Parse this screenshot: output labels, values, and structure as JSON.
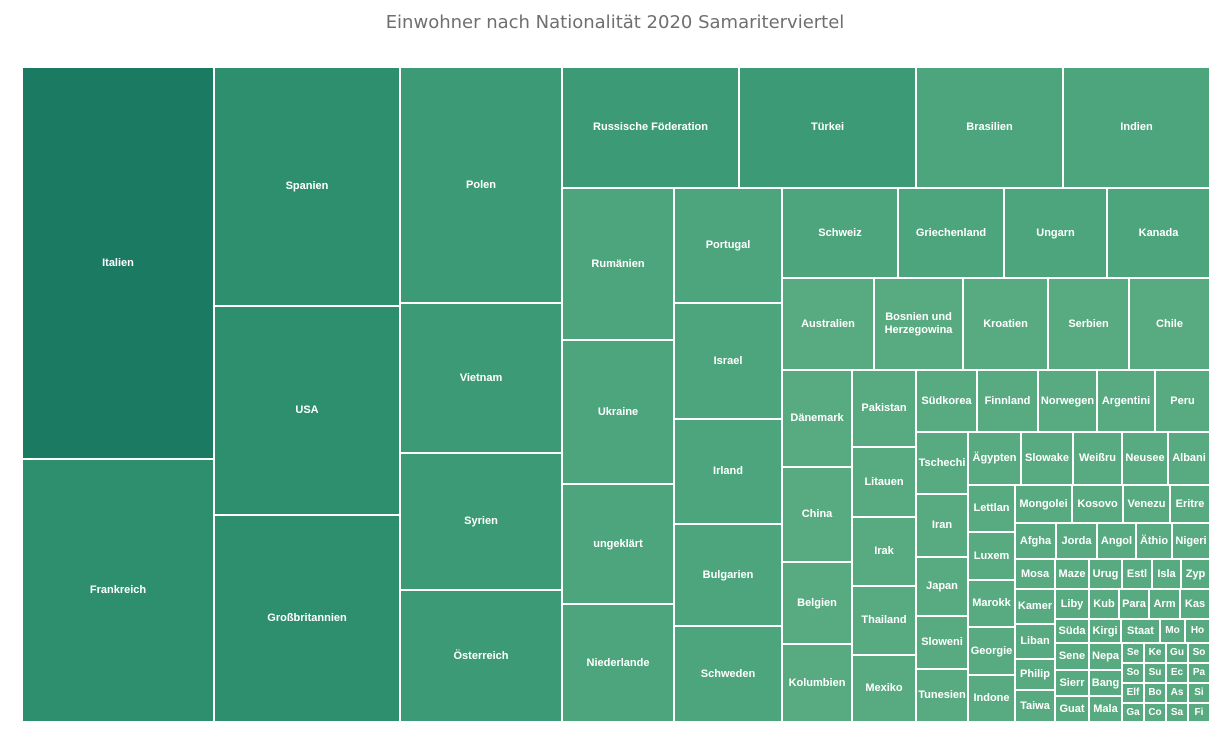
{
  "chart_data": {
    "type": "treemap",
    "title": "Einwohner nach Nationalität 2020 Samariterviertel",
    "categories": [
      "Italien",
      "Frankreich",
      "Spanien",
      "USA",
      "Großbritannien",
      "Polen",
      "Vietnam",
      "Syrien",
      "Österreich",
      "Russische Föderation",
      "Türkei",
      "Brasilien",
      "Indien",
      "Rumänien",
      "Ukraine",
      "ungeklärt",
      "Niederlande",
      "Portugal",
      "Israel",
      "Irland",
      "Bulgarien",
      "Schweden",
      "Schweiz",
      "Griechenland",
      "Ungarn",
      "Kanada",
      "Australien",
      "Bosnien und Herzegowina",
      "Kroatien",
      "Serbien",
      "Chile",
      "Dänemark",
      "China",
      "Belgien",
      "Kolumbien",
      "Pakistan",
      "Litauen",
      "Irak",
      "Thailand",
      "Mexiko",
      "Südkorea",
      "Finnland",
      "Norwegen",
      "Argentini",
      "Peru",
      "Tschechi",
      "Iran",
      "Japan",
      "Sloweni",
      "Tunesien",
      "Ägypten",
      "Slowake",
      "Weißru",
      "Neusee",
      "Albani",
      "Lettlan",
      "Luxem",
      "Marokk",
      "Georgie",
      "Indone",
      "Mongolei",
      "Kosovo",
      "Venezu",
      "Eritre",
      "Afgha",
      "Jorda",
      "Angol",
      "Äthio",
      "Nigeri",
      "Mosa",
      "Maze",
      "Urug",
      "Estl",
      "Isla",
      "Zyp",
      "Kamer",
      "Liby",
      "Kub",
      "Para",
      "Arm",
      "Kas",
      "Liban",
      "Süda",
      "Kirgi",
      "Staat",
      "Mo",
      "Ho",
      "Philip",
      "Sene",
      "Nepa",
      "Se",
      "Ke",
      "Gu",
      "So",
      "Sierr",
      "Bang",
      "So",
      "Su",
      "Ec",
      "Pa",
      "Taiwa",
      "Guat",
      "Mala",
      "Elf",
      "Bo",
      "As",
      "Si",
      "Ga",
      "Co",
      "Sa",
      "Fi"
    ],
    "values": [
      132,
      94,
      58,
      51,
      50,
      42,
      39,
      37,
      35,
      19,
      19,
      16,
      16,
      24,
      19,
      17,
      16,
      17,
      18,
      16,
      16,
      14,
      11,
      10,
      10,
      10,
      9,
      8,
      8,
      8,
      8,
      9,
      9,
      7,
      7,
      6,
      5,
      5,
      5,
      5,
      4,
      4,
      4,
      4,
      4,
      3,
      3,
      3,
      2,
      2,
      3,
      3,
      3,
      3,
      3,
      2,
      2,
      2,
      2,
      2,
      2,
      2,
      2,
      2,
      2,
      2,
      2,
      2,
      2,
      1,
      1,
      1,
      1,
      1,
      1,
      1,
      1,
      1,
      1,
      1,
      1,
      1,
      1,
      1,
      1,
      1,
      1,
      1,
      1,
      1,
      1,
      1,
      1,
      1,
      1,
      1,
      1,
      1,
      1,
      1,
      1,
      1,
      1,
      1,
      1,
      1,
      1,
      1,
      1,
      1,
      1
    ],
    "colors": {
      "darkest": "#1a7a62",
      "dark": "#2e8f6f",
      "mid": "#3c9b76",
      "light": "#4ca57c",
      "lighter": "#58ab81",
      "text": "#ffffff"
    }
  }
}
